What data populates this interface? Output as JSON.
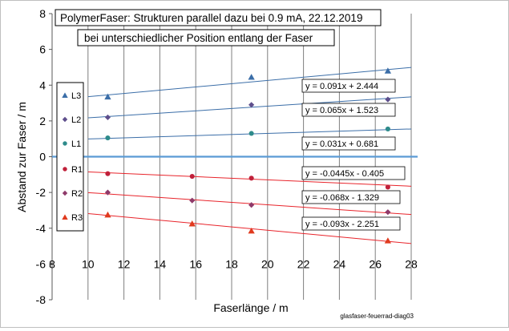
{
  "chart_data": {
    "type": "scatter",
    "title": "PolymerFaser:  Strukturen parallel dazu bei 0.9 mA, 22.12.2019",
    "subtitle": "bei unterschiedlicher Position entlang der Faser",
    "xlabel": "Faserlänge / m",
    "ylabel": "Abstand zur Faser / m",
    "xlim": [
      8,
      28
    ],
    "ylim": [
      -8,
      8
    ],
    "xticks": [
      "8",
      "10",
      "12",
      "14",
      "16",
      "18",
      "20",
      "22",
      "24",
      "26",
      "28"
    ],
    "yticks": [
      "8",
      "6",
      "4",
      "2",
      "0",
      "-2",
      "-4",
      "-6",
      "-8"
    ],
    "grid": "vertical",
    "legend_position": "left",
    "credit": "glasfaser-feuerrad-diag03",
    "series": [
      {
        "name": "L3",
        "marker": "triangle",
        "color": "#3b6ea8",
        "x": [
          11.1,
          19.1,
          26.7
        ],
        "y": [
          3.35,
          4.45,
          4.8
        ],
        "equation": "y = 0.091x + 2.444",
        "fit": [
          0.091,
          2.444
        ]
      },
      {
        "name": "L2",
        "marker": "diamond",
        "color": "#5e4e8c",
        "x": [
          11.1,
          19.1,
          26.7
        ],
        "y": [
          2.2,
          2.9,
          3.2
        ],
        "equation": "y = 0.065x + 1.523",
        "fit": [
          0.065,
          1.523
        ]
      },
      {
        "name": "L1",
        "marker": "circle",
        "color": "#2e8b8b",
        "x": [
          11.1,
          19.1,
          26.7
        ],
        "y": [
          1.05,
          1.3,
          1.55
        ],
        "equation": "y = 0.031x + 0.681",
        "fit": [
          0.031,
          0.681
        ]
      },
      {
        "name": "R1",
        "marker": "circle",
        "color": "#c0203a",
        "x": [
          11.1,
          15.8,
          19.1,
          26.7
        ],
        "y": [
          -0.95,
          -1.1,
          -1.2,
          -1.7
        ],
        "equation": "y = -0.0445x - 0.405",
        "fit": [
          -0.0445,
          -0.405
        ]
      },
      {
        "name": "R2",
        "marker": "diamond",
        "color": "#8e3a6a",
        "x": [
          11.1,
          15.8,
          19.1,
          26.7
        ],
        "y": [
          -2.0,
          -2.45,
          -2.7,
          -3.1
        ],
        "equation": "y = -0.068x - 1.329",
        "fit": [
          -0.068,
          -1.329
        ]
      },
      {
        "name": "R3",
        "marker": "triangle",
        "color": "#e03a1e",
        "x": [
          11.1,
          15.8,
          19.1,
          26.7
        ],
        "y": [
          -3.25,
          -3.75,
          -4.15,
          -4.7
        ],
        "equation": "y = -0.093x - 2.251",
        "fit": [
          -0.093,
          -2.251
        ]
      }
    ]
  },
  "colors": {
    "zero_line": "#5b9bd5",
    "grid": "#7f7f7f",
    "fit_left": "#3b6ea8",
    "fit_right": "#e8242b"
  }
}
